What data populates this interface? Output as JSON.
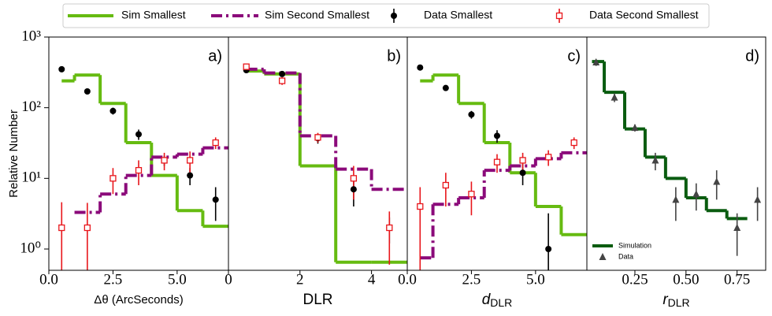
{
  "legend": [
    "Sim Smallest",
    "Sim Second Smallest",
    "Data Smallest",
    "Data Second Smallest"
  ],
  "chart_data": [
    {
      "type": "step_histogram",
      "panel_label": "a)",
      "y_label": "Relative Number",
      "x_label": "Δθ (ArcSeconds)",
      "yscale": "log",
      "ylim": [
        0.5,
        1000
      ],
      "yticks": [
        {
          "value": 1,
          "label": "10⁰"
        },
        {
          "value": 10,
          "label": "10¹"
        },
        {
          "value": 100,
          "label": "10²"
        },
        {
          "value": 1000,
          "label": "10³"
        }
      ],
      "xlim": [
        0,
        7
      ],
      "xticks": [
        {
          "value": 0,
          "label": "0.0"
        },
        2.5,
        {
          "value": 5,
          "label": "5.0"
        }
      ],
      "series": [
        {
          "kind": "step",
          "color": "#66bb11",
          "bins": [
            0.5,
            1,
            2,
            3,
            4,
            5,
            6,
            7
          ],
          "values": [
            240,
            290,
            115,
            32,
            11,
            3.5,
            2.1
          ]
        },
        {
          "kind": "step",
          "color": "#8b0a7a",
          "dashed": true,
          "bins": [
            1,
            2,
            3,
            4,
            5,
            6,
            7
          ],
          "values": [
            3.3,
            6,
            11,
            20,
            22,
            27
          ]
        },
        {
          "kind": "points",
          "marker": "circle",
          "color": "#000000",
          "x": [
            0.5,
            1.5,
            2.5,
            3.5,
            4.5,
            5.5,
            6.5
          ],
          "values": [
            350,
            170,
            90,
            42,
            18,
            11,
            5
          ],
          "errors": [
            30,
            15,
            10,
            7,
            3,
            3,
            2.5
          ]
        },
        {
          "kind": "points",
          "marker": "square",
          "color": "#e8161b",
          "x": [
            0.5,
            1.5,
            2.5,
            3.5,
            4.5,
            5.5,
            6.5
          ],
          "values": [
            2,
            2,
            10,
            13,
            18,
            18,
            32
          ],
          "errors": [
            2.6,
            2.5,
            4,
            5,
            5,
            6,
            6
          ]
        }
      ]
    },
    {
      "type": "step_histogram",
      "panel_label": "b)",
      "x_label": "DLR",
      "xlim": [
        0,
        5
      ],
      "xticks": [
        0,
        2,
        4
      ],
      "series": [
        {
          "kind": "step",
          "color": "#66bb11",
          "bins": [
            0.5,
            1,
            2,
            3,
            4,
            5
          ],
          "values": [
            330,
            300,
            15,
            0.65,
            0.65
          ]
        },
        {
          "kind": "step",
          "color": "#8b0a7a",
          "dashed": true,
          "bins": [
            0.5,
            1,
            2,
            3,
            4,
            5
          ],
          "values": [
            350,
            310,
            40,
            13.5,
            7
          ]
        },
        {
          "kind": "points",
          "marker": "circle",
          "color": "#000000",
          "x": [
            0.5,
            1.5,
            2.5,
            3.5,
            4.5
          ],
          "values": [
            340,
            300,
            37,
            7,
            2
          ],
          "errors": [
            30,
            20,
            6,
            3,
            0.8
          ]
        },
        {
          "kind": "points",
          "marker": "square",
          "color": "#e8161b",
          "x": [
            0.5,
            1.5,
            2.5,
            3.5,
            4.5
          ],
          "values": [
            380,
            240,
            38,
            10,
            2
          ],
          "errors": [
            40,
            30,
            6,
            5,
            1.4
          ]
        }
      ]
    },
    {
      "type": "step_histogram",
      "panel_label": "c)",
      "x_label": "d",
      "x_label_sub": "DLR",
      "xlim": [
        0,
        7
      ],
      "xticks": [
        {
          "value": 0,
          "label": "0.0"
        },
        2.5,
        {
          "value": 5,
          "label": "5.0"
        }
      ],
      "series": [
        {
          "kind": "step",
          "color": "#66bb11",
          "bins": [
            0.5,
            1,
            2,
            3,
            4,
            5,
            6,
            7
          ],
          "values": [
            240,
            290,
            115,
            32,
            12,
            4,
            1.6
          ]
        },
        {
          "kind": "step",
          "color": "#8b0a7a",
          "dashed": true,
          "bins": [
            0.5,
            1,
            2,
            3,
            4,
            5,
            6,
            7
          ],
          "values": [
            0.75,
            4.3,
            5.3,
            13,
            15,
            19,
            23
          ]
        },
        {
          "kind": "points",
          "marker": "circle",
          "color": "#000000",
          "x": [
            0.5,
            1.5,
            2.5,
            3.5,
            4.5,
            5.5
          ],
          "values": [
            370,
            190,
            80,
            40,
            12,
            1
          ],
          "errors": [
            30,
            15,
            10,
            8,
            4,
            2.2
          ]
        },
        {
          "kind": "points",
          "marker": "square",
          "color": "#e8161b",
          "x": [
            0.5,
            1.5,
            2.5,
            3.5,
            4.5,
            5.5,
            6.5
          ],
          "values": [
            4,
            8,
            6,
            17,
            18,
            20,
            32
          ],
          "errors": [
            3.5,
            4,
            3,
            5,
            5,
            5,
            6
          ]
        }
      ]
    },
    {
      "type": "step_histogram",
      "panel_label": "d)",
      "x_label": "r",
      "x_label_sub": "DLR",
      "xlim": [
        0.015,
        0.89
      ],
      "xticks": [
        0.25,
        {
          "value": 0.5,
          "label": "0.50"
        },
        0.75
      ],
      "series": [
        {
          "kind": "step",
          "name": "Simulation",
          "color": "#0a5c10",
          "bins": [
            0.04,
            0.1,
            0.2,
            0.3,
            0.4,
            0.5,
            0.6,
            0.7,
            0.8
          ],
          "values": [
            450,
            165,
            50,
            20,
            10,
            5.3,
            3.5,
            2.7
          ]
        },
        {
          "kind": "points",
          "name": "Data",
          "marker": "triangle",
          "color": "#444444",
          "x": [
            0.06,
            0.15,
            0.25,
            0.35,
            0.45,
            0.55,
            0.65,
            0.75,
            0.85
          ],
          "values": [
            440,
            140,
            52,
            18,
            5,
            6,
            9,
            2,
            5
          ],
          "errors": [
            50,
            20,
            6,
            5,
            2.5,
            2.5,
            4,
            1.2,
            2.5
          ]
        }
      ]
    }
  ]
}
